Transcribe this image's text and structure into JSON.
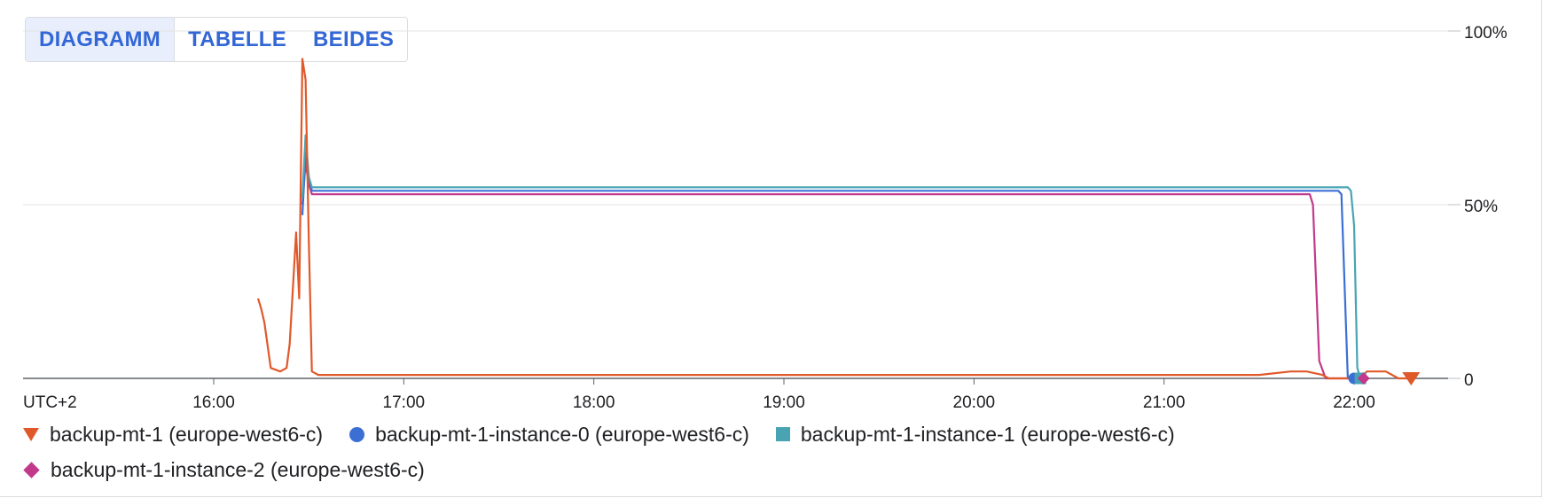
{
  "view_toggle": {
    "options": [
      {
        "label": "DIAGRAMM",
        "active": true
      },
      {
        "label": "TABELLE",
        "active": false
      },
      {
        "label": "BEIDES",
        "active": false
      }
    ]
  },
  "chart_data": {
    "type": "line",
    "timezone_label": "UTC+2",
    "x_ticks": [
      "16:00",
      "17:00",
      "18:00",
      "19:00",
      "20:00",
      "21:00",
      "22:00"
    ],
    "x_range": [
      "15:00",
      "22:30"
    ],
    "y_ticks": [
      "0",
      "50%",
      "100%"
    ],
    "ylim": [
      0,
      100
    ],
    "y_axis_position": "right",
    "grid": true,
    "legend_position": "bottom",
    "series": [
      {
        "name": "backup-mt-1 (europe-west6-c)",
        "color": "#e0592a",
        "marker": "triangle-down",
        "points": [
          [
            "16:14",
            23
          ],
          [
            "16:15",
            20
          ],
          [
            "16:16",
            16
          ],
          [
            "16:18",
            3
          ],
          [
            "16:21",
            2
          ],
          [
            "16:23",
            3
          ],
          [
            "16:24",
            10
          ],
          [
            "16:26",
            42
          ],
          [
            "16:27",
            23
          ],
          [
            "16:28",
            92
          ],
          [
            "16:29",
            86
          ],
          [
            "16:30",
            40
          ],
          [
            "16:31",
            2
          ],
          [
            "16:33",
            1
          ],
          [
            "16:45",
            1
          ],
          [
            "17:00",
            1
          ],
          [
            "17:30",
            1
          ],
          [
            "18:00",
            1
          ],
          [
            "18:30",
            1
          ],
          [
            "19:00",
            1
          ],
          [
            "19:30",
            1
          ],
          [
            "20:00",
            1
          ],
          [
            "20:30",
            1
          ],
          [
            "21:00",
            1
          ],
          [
            "21:30",
            1
          ],
          [
            "21:40",
            2
          ],
          [
            "21:45",
            2
          ],
          [
            "21:50",
            1
          ],
          [
            "21:52",
            0
          ],
          [
            "22:00",
            0
          ],
          [
            "22:02",
            0
          ],
          [
            "22:04",
            2
          ],
          [
            "22:10",
            2
          ],
          [
            "22:12",
            1
          ],
          [
            "22:14",
            0
          ],
          [
            "22:18",
            0
          ]
        ]
      },
      {
        "name": "backup-mt-1-instance-0 (europe-west6-c)",
        "color": "#3b6fd4",
        "marker": "circle",
        "points": [
          [
            "16:28",
            47
          ],
          [
            "16:29",
            65
          ],
          [
            "16:30",
            58
          ],
          [
            "16:31",
            54
          ],
          [
            "16:45",
            54
          ],
          [
            "17:00",
            54
          ],
          [
            "17:30",
            54
          ],
          [
            "18:00",
            54
          ],
          [
            "18:30",
            54
          ],
          [
            "19:00",
            54
          ],
          [
            "19:30",
            54
          ],
          [
            "20:00",
            54
          ],
          [
            "20:30",
            54
          ],
          [
            "21:00",
            54
          ],
          [
            "21:30",
            54
          ],
          [
            "21:55",
            54
          ],
          [
            "21:56",
            53
          ],
          [
            "21:58",
            0
          ],
          [
            "22:00",
            0
          ]
        ]
      },
      {
        "name": "backup-mt-1-instance-1 (europe-west6-c)",
        "color": "#48a4b3",
        "marker": "square",
        "points": [
          [
            "16:28",
            52
          ],
          [
            "16:29",
            70
          ],
          [
            "16:30",
            58
          ],
          [
            "16:31",
            55
          ],
          [
            "16:45",
            55
          ],
          [
            "17:00",
            55
          ],
          [
            "17:30",
            55
          ],
          [
            "18:00",
            55
          ],
          [
            "18:30",
            55
          ],
          [
            "19:00",
            55
          ],
          [
            "19:30",
            55
          ],
          [
            "20:00",
            55
          ],
          [
            "20:30",
            55
          ],
          [
            "21:00",
            55
          ],
          [
            "21:30",
            55
          ],
          [
            "21:58",
            55
          ],
          [
            "21:59",
            54
          ],
          [
            "22:00",
            44
          ],
          [
            "22:01",
            3
          ],
          [
            "22:02",
            0
          ]
        ]
      },
      {
        "name": "backup-mt-1-instance-2 (europe-west6-c)",
        "color": "#c2398b",
        "marker": "diamond",
        "points": [
          [
            "16:28",
            50
          ],
          [
            "16:29",
            62
          ],
          [
            "16:30",
            56
          ],
          [
            "16:31",
            53
          ],
          [
            "16:45",
            53
          ],
          [
            "17:00",
            53
          ],
          [
            "17:30",
            53
          ],
          [
            "18:00",
            53
          ],
          [
            "18:30",
            53
          ],
          [
            "19:00",
            53
          ],
          [
            "19:30",
            53
          ],
          [
            "20:00",
            53
          ],
          [
            "20:30",
            53
          ],
          [
            "21:00",
            53
          ],
          [
            "21:30",
            53
          ],
          [
            "21:46",
            53
          ],
          [
            "21:47",
            50
          ],
          [
            "21:49",
            5
          ],
          [
            "21:51",
            0
          ],
          [
            "22:03",
            0
          ]
        ]
      }
    ]
  }
}
